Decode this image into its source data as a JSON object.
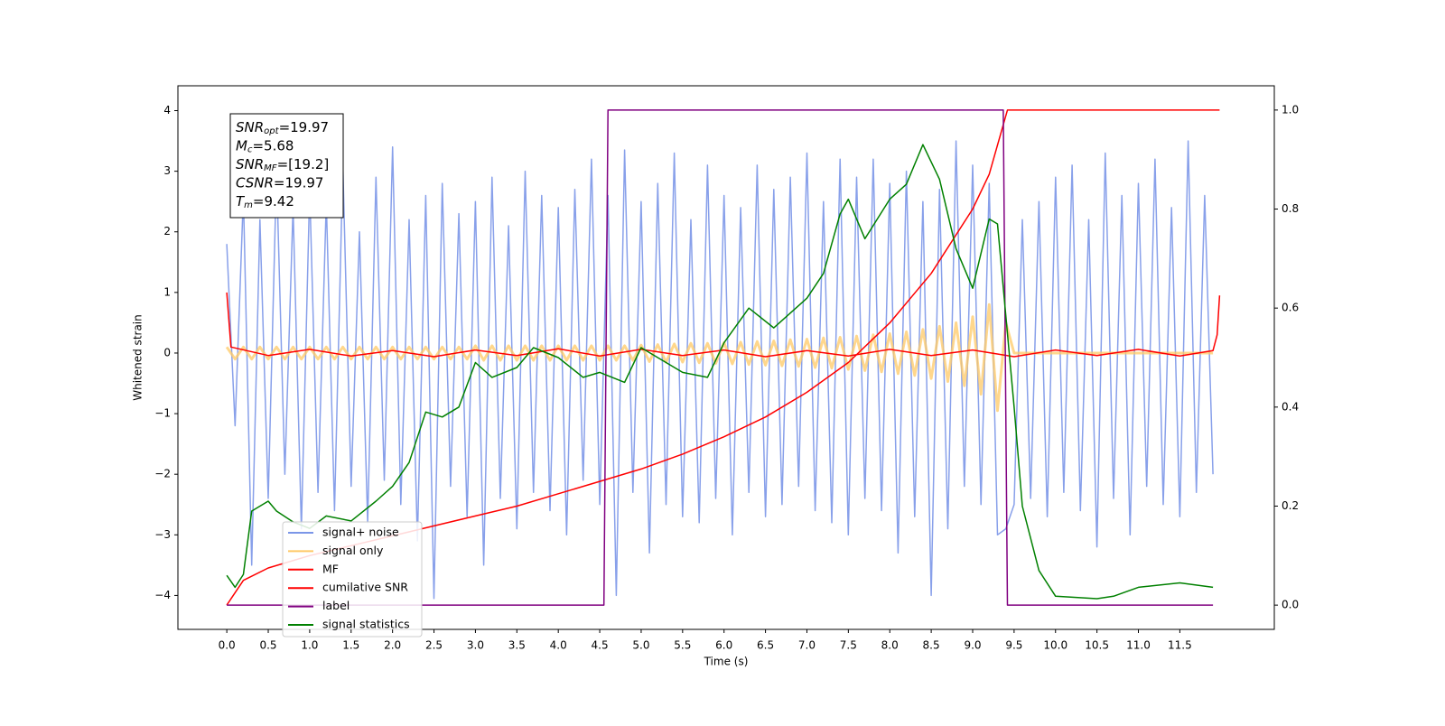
{
  "chart_data": {
    "type": "line",
    "xlabel": "Time (s)",
    "ylabel": "Whitened strain",
    "xlim": [
      -0.59,
      12.64
    ],
    "ylim": [
      -4.56,
      4.41
    ],
    "y2lim": [
      -0.049,
      1.049
    ],
    "xticks": [
      {
        "value": 0,
        "label": "0.0"
      },
      0.5,
      {
        "value": 1,
        "label": "1.0"
      },
      1.5,
      {
        "value": 2,
        "label": "2.0"
      },
      2.5,
      {
        "value": 3,
        "label": "3.0"
      },
      3.5,
      {
        "value": 4,
        "label": "4.0"
      },
      4.5,
      {
        "value": 5,
        "label": "5.0"
      },
      5.5,
      {
        "value": 6,
        "label": "6.0"
      },
      6.5,
      {
        "value": 7,
        "label": "7.0"
      },
      7.5,
      {
        "value": 8,
        "label": "8.0"
      },
      8.5,
      {
        "value": 9,
        "label": "9.0"
      },
      9.5,
      {
        "value": 10,
        "label": "10.0"
      },
      10.5,
      {
        "value": 11,
        "label": "11.0"
      },
      11.5
    ],
    "yticks": [
      {
        "value": -4,
        "label": "−4"
      },
      {
        "value": -3,
        "label": "−3"
      },
      {
        "value": -2,
        "label": "−2"
      },
      {
        "value": -1,
        "label": "−1"
      },
      0,
      1,
      2,
      3,
      4
    ],
    "y2ticks": [
      {
        "value": 0,
        "label": "0.0"
      },
      0.2,
      0.4,
      0.6,
      0.8,
      {
        "value": 1,
        "label": "1.0"
      }
    ],
    "annotations": [
      {
        "symbol": "SNR",
        "sub": "opt",
        "text": "=19.97"
      },
      {
        "symbol": "M",
        "sub": "c",
        "text": "=5.68"
      },
      {
        "symbol": "SNR",
        "sub": "MF",
        "text": "=[19.2]"
      },
      {
        "symbol": "CSNR",
        "sub": "",
        "text": "=19.97"
      },
      {
        "symbol": "T",
        "sub": "m",
        "text": "=9.42"
      }
    ],
    "x": [
      0,
      0.1,
      0.2,
      0.3,
      0.4,
      0.5,
      0.6,
      0.7,
      0.8,
      0.9,
      1,
      1.1,
      1.2,
      1.3,
      1.4,
      1.5,
      1.6,
      1.7,
      1.8,
      1.9,
      2,
      2.1,
      2.2,
      2.3,
      2.4,
      2.5,
      2.6,
      2.7,
      2.8,
      2.9,
      3,
      3.1,
      3.2,
      3.3,
      3.4,
      3.5,
      3.6,
      3.7,
      3.8,
      3.9,
      4,
      4.1,
      4.2,
      4.3,
      4.4,
      4.5,
      4.6,
      4.7,
      4.8,
      4.9,
      5,
      5.1,
      5.2,
      5.3,
      5.4,
      5.5,
      5.6,
      5.7,
      5.8,
      5.9,
      6,
      6.1,
      6.2,
      6.3,
      6.4,
      6.5,
      6.6,
      6.7,
      6.8,
      6.9,
      7,
      7.1,
      7.2,
      7.3,
      7.4,
      7.5,
      7.6,
      7.7,
      7.8,
      7.9,
      8,
      8.1,
      8.2,
      8.3,
      8.4,
      8.5,
      8.6,
      8.7,
      8.8,
      8.9,
      9,
      9.1,
      9.2,
      9.3,
      9.4,
      9.5,
      9.6,
      9.7,
      9.8,
      9.9,
      10,
      10.1,
      10.2,
      10.3,
      10.4,
      10.5,
      10.6,
      10.7,
      10.8,
      10.9,
      11,
      11.1,
      11.2,
      11.3,
      11.4,
      11.5,
      11.6,
      11.7,
      11.8,
      11.9
    ],
    "series": [
      {
        "name": "signal+ noise",
        "color": "#7b96e8",
        "values": [
          1.8,
          -1.2,
          2.6,
          -3.5,
          2.2,
          -2.4,
          3.0,
          -2.0,
          2.4,
          -2.9,
          2.7,
          -2.3,
          2.5,
          -2.6,
          3.1,
          -2.2,
          2.0,
          -2.8,
          2.9,
          -2.1,
          3.4,
          -2.5,
          2.2,
          -3.1,
          2.6,
          -4.05,
          2.8,
          -2.2,
          2.3,
          -2.7,
          2.5,
          -3.5,
          2.9,
          -2.4,
          2.1,
          -2.9,
          3.0,
          -2.3,
          2.6,
          -2.6,
          2.4,
          -3.0,
          2.7,
          -2.1,
          3.2,
          -2.5,
          2.6,
          -4.0,
          3.35,
          -2.3,
          2.5,
          -3.3,
          2.8,
          -2.5,
          3.3,
          -2.7,
          2.2,
          -2.8,
          3.1,
          -2.4,
          2.6,
          -3.0,
          2.4,
          -2.3,
          3.1,
          -2.7,
          2.7,
          -2.5,
          2.9,
          -2.2,
          3.3,
          -2.6,
          2.5,
          -2.8,
          3.2,
          -3.0,
          2.9,
          -2.4,
          3.2,
          -2.6,
          2.8,
          -3.3,
          3.0,
          -2.7,
          2.5,
          -4.0,
          2.7,
          -2.9,
          3.5,
          -2.2,
          3.1,
          -2.5,
          2.8,
          -3.0,
          -2.9,
          -2.5,
          2.2,
          -2.4,
          2.5,
          -2.7,
          2.9,
          -2.3,
          3.1,
          -2.6,
          2.2,
          -3.2,
          3.3,
          -2.4,
          2.6,
          -3.0,
          2.8,
          -2.2,
          3.2,
          -2.5,
          2.4,
          -2.7,
          3.5,
          -2.3,
          2.6,
          -2.0
        ]
      },
      {
        "name": "signal only",
        "color": "#ffc966",
        "values": [
          0.1,
          -0.1,
          0.1,
          -0.1,
          0.1,
          -0.1,
          0.1,
          -0.1,
          0.1,
          -0.1,
          0.1,
          -0.1,
          0.1,
          -0.1,
          0.1,
          -0.1,
          0.1,
          -0.1,
          0.1,
          -0.1,
          0.1,
          -0.1,
          0.1,
          -0.1,
          0.1,
          -0.1,
          0.1,
          -0.1,
          0.1,
          -0.1,
          0.12,
          -0.12,
          0.12,
          -0.12,
          0.12,
          -0.12,
          0.12,
          -0.12,
          0.12,
          -0.12,
          0.12,
          -0.12,
          0.12,
          -0.12,
          0.12,
          -0.12,
          0.12,
          -0.12,
          0.12,
          -0.12,
          0.13,
          -0.14,
          0.14,
          -0.15,
          0.15,
          -0.15,
          0.16,
          -0.16,
          0.16,
          -0.17,
          0.17,
          -0.18,
          0.18,
          -0.19,
          0.19,
          -0.2,
          0.2,
          -0.21,
          0.22,
          -0.22,
          0.23,
          -0.24,
          0.25,
          -0.25,
          0.26,
          -0.27,
          0.28,
          -0.29,
          0.3,
          -0.31,
          0.32,
          -0.34,
          0.35,
          -0.37,
          0.39,
          -0.42,
          0.44,
          -0.47,
          0.5,
          -0.54,
          0.6,
          -0.68,
          0.8,
          -0.95,
          0.5,
          0,
          0,
          0,
          0,
          0,
          0,
          0,
          0,
          0,
          0,
          0,
          0,
          0,
          0,
          0,
          0,
          0,
          0,
          0,
          0,
          0,
          0,
          0,
          0,
          0
        ]
      },
      {
        "name": "MF",
        "color": "#ff0000",
        "x": [
          0,
          0.05,
          0.5,
          1,
          1.5,
          2,
          2.5,
          3,
          3.5,
          4,
          4.5,
          5,
          5.5,
          6,
          6.5,
          7,
          7.5,
          8,
          8.5,
          9,
          9.5,
          10,
          10.5,
          11,
          11.5,
          11.9,
          11.95,
          11.98
        ],
        "values": [
          1.0,
          0.1,
          -0.04,
          0.06,
          -0.05,
          0.04,
          -0.06,
          0.05,
          -0.04,
          0.07,
          -0.05,
          0.06,
          -0.04,
          0.05,
          -0.06,
          0.04,
          -0.05,
          0.06,
          -0.04,
          0.05,
          -0.06,
          0.05,
          -0.04,
          0.06,
          -0.05,
          0.04,
          0.3,
          0.95
        ]
      },
      {
        "name": "cumilative SNR",
        "color": "#ff0000",
        "axis": "y2",
        "x": [
          0,
          0.2,
          0.5,
          1,
          1.5,
          2,
          2.5,
          3,
          3.5,
          4,
          4.5,
          5,
          5.5,
          6,
          6.5,
          7,
          7.5,
          8,
          8.5,
          9,
          9.2,
          9.42,
          11.98
        ],
        "values": [
          0,
          0.05,
          0.075,
          0.1,
          0.12,
          0.14,
          0.16,
          0.18,
          0.2,
          0.225,
          0.25,
          0.275,
          0.305,
          0.34,
          0.38,
          0.43,
          0.49,
          0.57,
          0.67,
          0.8,
          0.87,
          1.0,
          1.0
        ]
      },
      {
        "name": "label",
        "color": "#800080",
        "axis": "y2",
        "x": [
          0,
          4.55,
          4.6,
          9.37,
          9.42,
          11.9
        ],
        "values": [
          0,
          0,
          1,
          1,
          0,
          0
        ]
      },
      {
        "name": "signal statistics",
        "color": "#008000",
        "axis": "y2",
        "x": [
          0,
          0.1,
          0.2,
          0.3,
          0.5,
          0.6,
          0.8,
          1.0,
          1.2,
          1.5,
          1.8,
          2.0,
          2.2,
          2.4,
          2.6,
          2.8,
          3.0,
          3.2,
          3.5,
          3.7,
          4.0,
          4.3,
          4.5,
          4.8,
          5.0,
          5.2,
          5.5,
          5.8,
          6.0,
          6.3,
          6.6,
          6.8,
          7.0,
          7.2,
          7.4,
          7.5,
          7.7,
          8.0,
          8.2,
          8.4,
          8.6,
          8.8,
          9.0,
          9.2,
          9.3,
          9.5,
          9.6,
          9.8,
          10.0,
          10.5,
          10.7,
          11.0,
          11.5,
          11.9
        ],
        "values": [
          0.06,
          0.036,
          0.062,
          0.19,
          0.21,
          0.19,
          0.168,
          0.155,
          0.18,
          0.17,
          0.21,
          0.24,
          0.288,
          0.39,
          0.38,
          0.4,
          0.49,
          0.46,
          0.48,
          0.52,
          0.5,
          0.46,
          0.47,
          0.45,
          0.52,
          0.5,
          0.47,
          0.46,
          0.53,
          0.6,
          0.56,
          0.59,
          0.62,
          0.67,
          0.79,
          0.82,
          0.74,
          0.82,
          0.85,
          0.93,
          0.86,
          0.72,
          0.64,
          0.78,
          0.77,
          0.4,
          0.2,
          0.07,
          0.018,
          0.013,
          0.018,
          0.036,
          0.045,
          0.036
        ]
      }
    ]
  }
}
